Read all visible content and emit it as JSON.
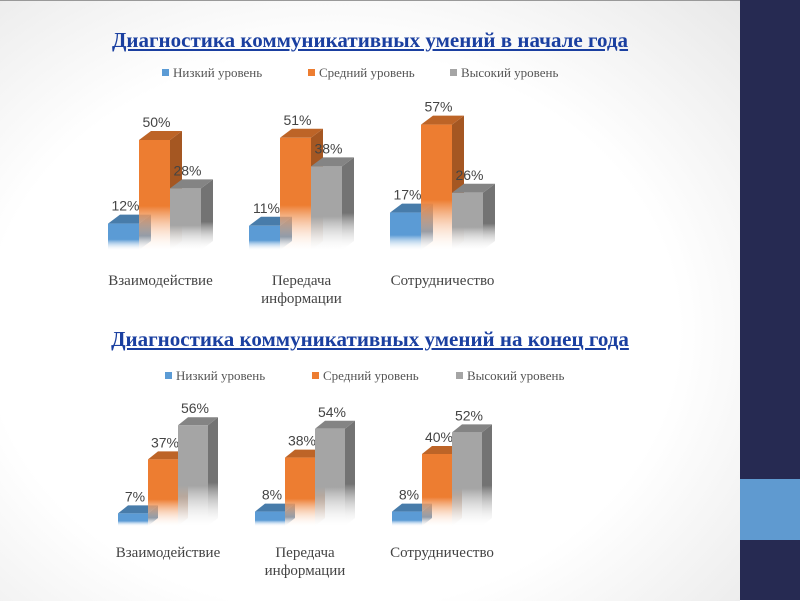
{
  "chart_data": [
    {
      "type": "bar",
      "title": "Диагностика коммуникативных умений в начале года",
      "categories": [
        "Взаимодействие",
        "Передача информации",
        "Сотрудничество"
      ],
      "series": [
        {
          "name": "Низкий уровень",
          "values": [
            12,
            11,
            17
          ],
          "color": "#5b9bd5"
        },
        {
          "name": "Средний уровень",
          "values": [
            50,
            51,
            57
          ],
          "color": "#ed7d31"
        },
        {
          "name": "Высокий уровень",
          "values": [
            28,
            38,
            26
          ],
          "color": "#a5a5a5"
        }
      ],
      "value_suffix": "%",
      "legend": "top"
    },
    {
      "type": "bar",
      "title": "Диагностика коммуникативных умений на  конец года",
      "categories": [
        "Взаимодействие",
        "Передача информации",
        "Сотрудничество"
      ],
      "series": [
        {
          "name": "Низкий уровень",
          "values": [
            7,
            8,
            8
          ],
          "color": "#5b9bd5"
        },
        {
          "name": "Средний уровень",
          "values": [
            37,
            38,
            40
          ],
          "color": "#ed7d31"
        },
        {
          "name": "Высокий уровень",
          "values": [
            56,
            54,
            52
          ],
          "color": "#a5a5a5"
        }
      ],
      "value_suffix": "%",
      "legend": "top"
    }
  ]
}
